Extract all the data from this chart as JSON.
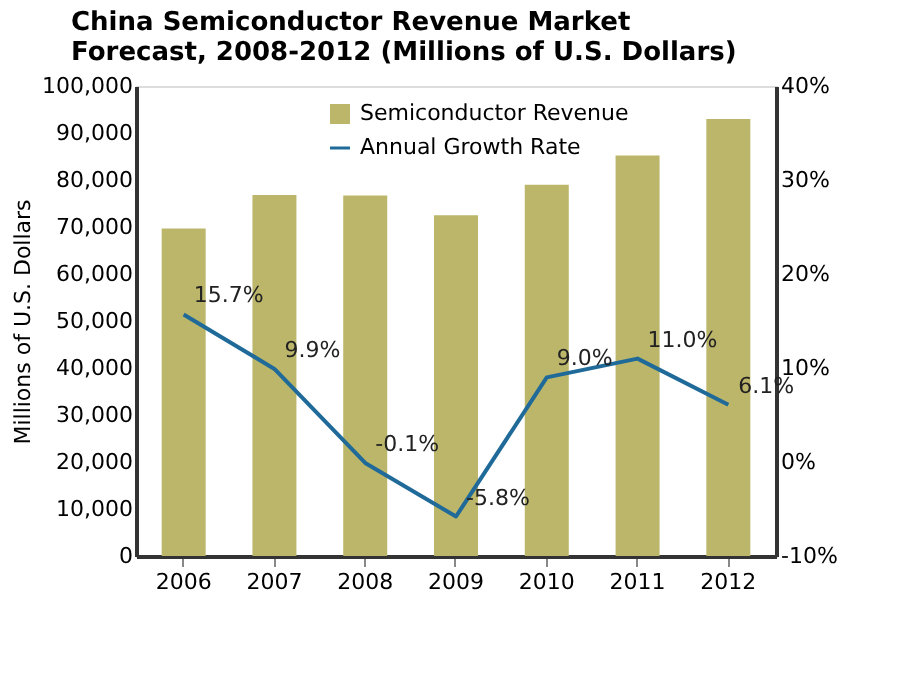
{
  "chart_data": {
    "type": "bar",
    "title": [
      "China Semiconductor Revenue Market",
      "Forecast, 2008-2012 (Millions of U.S. Dollars)"
    ],
    "categories": [
      "2006",
      "2007",
      "2008",
      "2009",
      "2010",
      "2011",
      "2012"
    ],
    "ylabel": "Millions of U.S. Dollars",
    "ylim": [
      0,
      100000
    ],
    "yticks": [
      {
        "value": 0,
        "label": "0"
      },
      {
        "value": 10000,
        "label": "10,000"
      },
      {
        "value": 20000,
        "label": "20,000"
      },
      {
        "value": 30000,
        "label": "30,000"
      },
      {
        "value": 40000,
        "label": "40,000"
      },
      {
        "value": 50000,
        "label": "50,000"
      },
      {
        "value": 60000,
        "label": "60,000"
      },
      {
        "value": 70000,
        "label": "70,000"
      },
      {
        "value": 80000,
        "label": "80,000"
      },
      {
        "value": 90000,
        "label": "90,000"
      },
      {
        "value": 100000,
        "label": "100,000"
      }
    ],
    "y2lim": [
      -10,
      40
    ],
    "y2ticks": [
      {
        "value": -10,
        "label": "-10%"
      },
      {
        "value": 0,
        "label": "0%"
      },
      {
        "value": 10,
        "label": "10%"
      },
      {
        "value": 20,
        "label": "20%"
      },
      {
        "value": 30,
        "label": "30%"
      },
      {
        "value": 40,
        "label": "40%"
      }
    ],
    "series": [
      {
        "name": "Semiconductor Revenue",
        "color": "#bcb66a",
        "values": [
          69700,
          76800,
          76700,
          72500,
          79000,
          85200,
          93000
        ]
      },
      {
        "name": "Annual Growth Rate",
        "type": "line",
        "axis": "y2",
        "color": "#1f6a99",
        "values": [
          15.7,
          9.9,
          -0.1,
          -5.8,
          9.0,
          11.0,
          6.1
        ],
        "value_labels": [
          "15.7%",
          "9.9%",
          "-0.1%",
          "-5.8%",
          "9.0%",
          "11.0%",
          "6.1%"
        ]
      }
    ],
    "legend": "top",
    "grid": false,
    "marker": "none",
    "line_style": "solid"
  }
}
